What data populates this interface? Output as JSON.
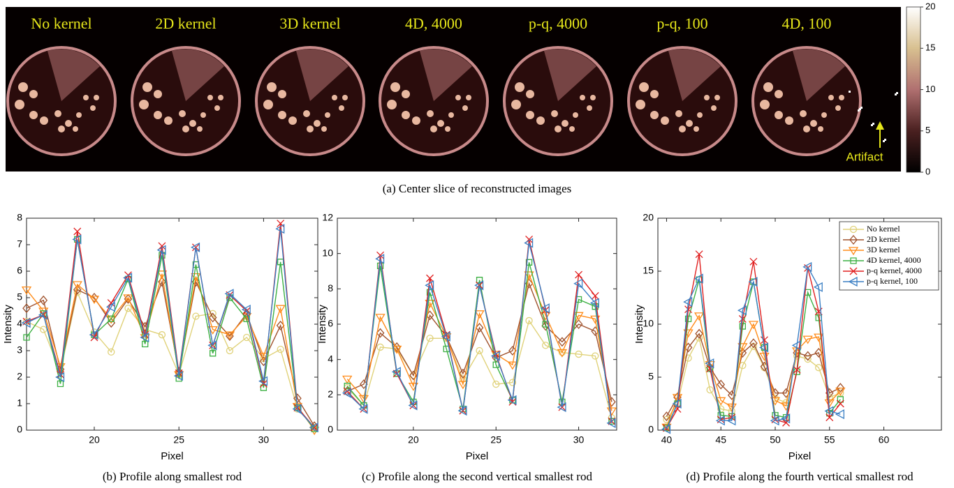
{
  "image_panel": {
    "labels": [
      "No kernel",
      "2D kernel",
      "3D kernel",
      "4D, 4000",
      "p-q, 4000",
      "p-q, 100",
      "4D, 100"
    ],
    "annotation": "Artifact",
    "caption": "(a) Center slice of reconstructed images",
    "colorbar": {
      "lim": [
        0,
        20
      ],
      "ticks": [
        0,
        5,
        10,
        15,
        20
      ]
    }
  },
  "chart_data": [
    {
      "type": "line",
      "caption": "(b) Profile along smallest rod",
      "xlabel": "Pixel",
      "ylabel": "Intensity",
      "x": [
        16,
        17,
        18,
        19,
        20,
        21,
        22,
        23,
        24,
        25,
        26,
        27,
        28,
        29,
        30,
        31,
        32,
        33
      ],
      "xlim": [
        16,
        33.2
      ],
      "ylim": [
        0,
        8
      ],
      "xticks": [
        20,
        25,
        30
      ],
      "yticks": [
        0,
        1,
        2,
        3,
        4,
        5,
        6,
        7,
        8
      ],
      "series": [
        {
          "color": "#e0d27a",
          "marker": "circle",
          "values": [
            4.1,
            3.8,
            2.2,
            5.2,
            3.7,
            2.95,
            4.6,
            3.8,
            3.6,
            2.1,
            4.3,
            4.4,
            3.0,
            3.5,
            2.7,
            3.05,
            0.8,
            0.1
          ]
        },
        {
          "color": "#a0522d",
          "marker": "diamond",
          "values": [
            4.6,
            4.9,
            2.3,
            5.3,
            5.0,
            4.05,
            4.95,
            3.9,
            5.6,
            2.2,
            5.6,
            4.25,
            3.55,
            4.4,
            2.6,
            3.95,
            1.2,
            0.15
          ]
        },
        {
          "color": "#ff8c1a",
          "marker": "tri-down",
          "values": [
            5.3,
            4.5,
            2.4,
            5.5,
            4.95,
            4.2,
            5.0,
            3.5,
            5.9,
            2.1,
            5.8,
            3.8,
            3.6,
            4.3,
            2.8,
            4.6,
            0.9,
            0.0
          ]
        },
        {
          "color": "#3cb043",
          "marker": "square",
          "values": [
            3.5,
            4.4,
            1.75,
            7.2,
            3.6,
            4.2,
            5.7,
            3.25,
            6.6,
            1.95,
            6.25,
            2.9,
            5.0,
            4.2,
            1.6,
            6.35,
            0.85,
            0.05
          ]
        },
        {
          "color": "#e02020",
          "marker": "x",
          "values": [
            4.1,
            4.35,
            2.1,
            7.5,
            3.5,
            4.8,
            5.85,
            3.6,
            6.95,
            2.15,
            6.9,
            3.2,
            5.1,
            4.5,
            1.75,
            7.8,
            0.85,
            0.1
          ]
        },
        {
          "color": "#3a7fc4",
          "marker": "tri-left",
          "values": [
            4.05,
            4.35,
            2.0,
            7.2,
            3.6,
            4.65,
            5.75,
            3.5,
            6.8,
            2.05,
            6.9,
            3.2,
            5.15,
            4.55,
            1.85,
            7.6,
            0.8,
            0.1
          ]
        }
      ]
    },
    {
      "type": "line",
      "caption": "(c) Profile along the second vertical smallest rod",
      "xlabel": "Pixel",
      "ylabel": "Intensity",
      "x": [
        16,
        17,
        18,
        19,
        20,
        21,
        22,
        23,
        24,
        25,
        26,
        27,
        28,
        29,
        30,
        31,
        32
      ],
      "xlim": [
        15.4,
        32.3
      ],
      "ylim": [
        0,
        12
      ],
      "xticks": [
        20,
        25,
        30
      ],
      "yticks": [
        0,
        2,
        4,
        6,
        8,
        10,
        12
      ],
      "series": [
        {
          "color": "#e0d27a",
          "marker": "circle",
          "values": [
            2.4,
            1.4,
            4.7,
            4.6,
            3.1,
            5.2,
            5.2,
            2.9,
            4.5,
            2.6,
            2.7,
            6.2,
            4.8,
            4.4,
            4.3,
            4.2,
            0.7
          ]
        },
        {
          "color": "#a0522d",
          "marker": "diamond",
          "values": [
            2.2,
            2.6,
            5.5,
            4.7,
            3.1,
            6.5,
            5.3,
            3.2,
            5.8,
            4.1,
            4.5,
            8.3,
            5.9,
            5.0,
            6.0,
            5.6,
            1.6
          ]
        },
        {
          "color": "#ff8c1a",
          "marker": "tri-down",
          "values": [
            2.9,
            1.8,
            6.4,
            4.6,
            2.5,
            7.2,
            5.3,
            2.6,
            6.6,
            4.3,
            3.7,
            8.8,
            6.5,
            4.4,
            6.5,
            6.3,
            1.1
          ]
        },
        {
          "color": "#3cb043",
          "marker": "square",
          "values": [
            2.5,
            1.4,
            9.3,
            3.2,
            1.6,
            7.8,
            4.6,
            1.2,
            8.5,
            3.7,
            1.7,
            9.5,
            6.0,
            1.6,
            7.4,
            7.0,
            0.5
          ]
        },
        {
          "color": "#e02020",
          "marker": "x",
          "values": [
            2.2,
            1.2,
            9.9,
            3.2,
            1.4,
            8.6,
            5.4,
            1.1,
            8.2,
            4.3,
            1.6,
            10.8,
            6.8,
            1.3,
            8.8,
            7.6,
            0.5
          ]
        },
        {
          "color": "#3a7fc4",
          "marker": "tri-left",
          "values": [
            2.1,
            1.2,
            9.7,
            3.3,
            1.4,
            8.2,
            5.3,
            1.1,
            8.2,
            4.2,
            1.7,
            10.6,
            6.9,
            1.3,
            8.3,
            7.2,
            0.4
          ]
        }
      ]
    },
    {
      "type": "line",
      "caption": "(d) Profile along the fourth vertical smallest rod",
      "xlabel": "Pixel",
      "ylabel": "Intensity",
      "x": [
        40,
        41,
        42,
        43,
        44,
        45,
        46,
        47,
        48,
        49,
        50,
        51,
        52,
        53,
        54,
        55,
        56
      ],
      "xlim": [
        39.2,
        65.3
      ],
      "ylim": [
        0,
        20
      ],
      "xticks": [
        40,
        45,
        50,
        55,
        60
      ],
      "yticks": [
        0,
        5,
        10,
        15,
        20
      ],
      "legend": "upper right",
      "series": [
        {
          "name": "No kernel",
          "color": "#e0d27a",
          "marker": "circle",
          "values": [
            1.0,
            2.5,
            6.8,
            8.7,
            3.8,
            2.0,
            1.8,
            6.1,
            7.9,
            5.9,
            3.0,
            2.6,
            7.0,
            6.7,
            5.9,
            3.1,
            3.5
          ]
        },
        {
          "name": "2D kernel",
          "color": "#a0522d",
          "marker": "diamond",
          "values": [
            1.3,
            3.1,
            7.8,
            9.1,
            5.9,
            4.3,
            3.3,
            7.3,
            8.2,
            6.0,
            3.5,
            3.5,
            7.3,
            7.0,
            7.3,
            3.5,
            4.0
          ]
        },
        {
          "name": "3D kernel",
          "color": "#ff8c1a",
          "marker": "tri-down",
          "values": [
            0.3,
            3.1,
            9.2,
            10.8,
            6.2,
            2.8,
            2.2,
            7.9,
            10.0,
            7.0,
            2.8,
            2.3,
            7.5,
            8.6,
            8.8,
            2.6,
            3.7
          ]
        },
        {
          "name": "4D kernel, 4000",
          "color": "#3cb043",
          "marker": "square",
          "values": [
            0.2,
            2.5,
            10.5,
            14.2,
            5.8,
            1.4,
            1.3,
            9.8,
            14.0,
            7.8,
            1.4,
            1.2,
            5.5,
            13.0,
            10.6,
            1.6,
            2.9
          ]
        },
        {
          "name": "p-q kernel, 4000",
          "color": "#e02020",
          "marker": "x",
          "values": [
            0.2,
            2.0,
            11.4,
            16.6,
            5.8,
            1.0,
            1.2,
            10.5,
            15.9,
            8.5,
            1.0,
            0.7,
            5.7,
            15.3,
            11.2,
            1.2,
            2.5
          ]
        },
        {
          "name": "p-q kernel, 100",
          "color": "#3a7fc4",
          "marker": "tri-left",
          "values": [
            0.1,
            2.5,
            12.1,
            14.3,
            6.3,
            0.9,
            0.9,
            11.3,
            14.0,
            7.8,
            0.9,
            1.1,
            8.0,
            15.4,
            13.5,
            1.8,
            1.5
          ]
        }
      ]
    }
  ]
}
